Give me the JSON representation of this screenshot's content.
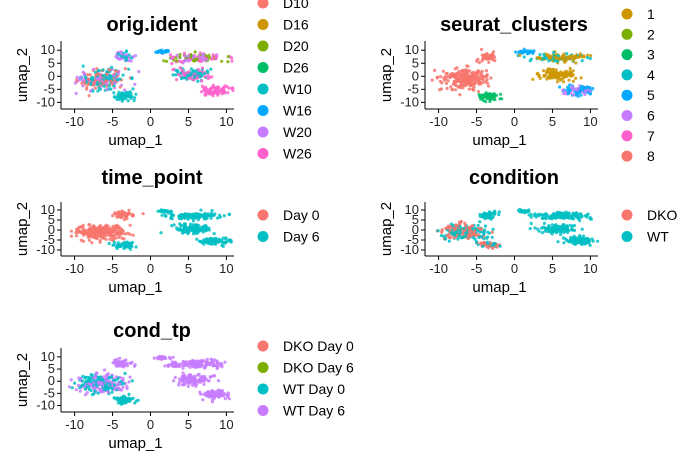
{
  "chart_data": [
    {
      "type": "scatter",
      "title": "orig.ident",
      "xlabel": "umap_1",
      "ylabel": "umap_2",
      "xticks": [
        "-10",
        "-5",
        "0",
        "5",
        "10"
      ],
      "yticks": [
        "10",
        "5",
        "0",
        "-5",
        "-10"
      ],
      "xlim": [
        -11,
        11
      ],
      "ylim": [
        -11,
        12
      ],
      "legend_position": "right",
      "legend": [
        {
          "label": "D10",
          "color": "#F8766D"
        },
        {
          "label": "D16",
          "color": "#CD9600"
        },
        {
          "label": "D20",
          "color": "#7CAE00"
        },
        {
          "label": "D26",
          "color": "#00BE67"
        },
        {
          "label": "W10",
          "color": "#00BFC4"
        },
        {
          "label": "W16",
          "color": "#00A9FF"
        },
        {
          "label": "W20",
          "color": "#C77CFF"
        },
        {
          "label": "W26",
          "color": "#FF61CC"
        }
      ]
    },
    {
      "type": "scatter",
      "title": "seurat_clusters",
      "xlabel": "umap_1",
      "ylabel": "umap_2",
      "xticks": [
        "-10",
        "-5",
        "0",
        "5",
        "10"
      ],
      "yticks": [
        "10",
        "5",
        "0",
        "-5",
        "-10"
      ],
      "xlim": [
        -11,
        11
      ],
      "ylim": [
        -11,
        12
      ],
      "legend_position": "right",
      "legend": [
        {
          "label": "1",
          "color": "#CD9600"
        },
        {
          "label": "2",
          "color": "#7CAE00"
        },
        {
          "label": "3",
          "color": "#00BE67"
        },
        {
          "label": "4",
          "color": "#00BFC4"
        },
        {
          "label": "5",
          "color": "#00A9FF"
        },
        {
          "label": "6",
          "color": "#C77CFF"
        },
        {
          "label": "7",
          "color": "#FF61CC"
        },
        {
          "label": "8",
          "color": "#F8766D"
        }
      ]
    },
    {
      "type": "scatter",
      "title": "time_point",
      "xlabel": "umap_1",
      "ylabel": "umap_2",
      "xticks": [
        "-10",
        "-5",
        "0",
        "5",
        "10"
      ],
      "yticks": [
        "10",
        "5",
        "0",
        "-5",
        "-10"
      ],
      "xlim": [
        -11,
        11
      ],
      "ylim": [
        -11,
        12
      ],
      "legend_position": "right",
      "legend": [
        {
          "label": "Day 0",
          "color": "#F8766D"
        },
        {
          "label": "Day 6",
          "color": "#00BFC4"
        }
      ]
    },
    {
      "type": "scatter",
      "title": "condition",
      "xlabel": "umap_1",
      "ylabel": "umap_2",
      "xticks": [
        "-10",
        "-5",
        "0",
        "5",
        "10"
      ],
      "yticks": [
        "10",
        "5",
        "0",
        "-5",
        "-10"
      ],
      "xlim": [
        -11,
        11
      ],
      "ylim": [
        -11,
        12
      ],
      "legend_position": "right",
      "legend": [
        {
          "label": "DKO",
          "color": "#F8766D"
        },
        {
          "label": "WT",
          "color": "#00BFC4"
        }
      ]
    },
    {
      "type": "scatter",
      "title": "cond_tp",
      "xlabel": "umap_1",
      "ylabel": "umap_2",
      "xticks": [
        "-10",
        "-5",
        "0",
        "5",
        "10"
      ],
      "yticks": [
        "10",
        "5",
        "0",
        "-5",
        "-10"
      ],
      "xlim": [
        -11,
        11
      ],
      "ylim": [
        -11,
        12
      ],
      "legend_position": "right",
      "legend": [
        {
          "label": "DKO Day 0",
          "color": "#F8766D"
        },
        {
          "label": "DKO Day 6",
          "color": "#7CAE00"
        },
        {
          "label": "WT Day 0",
          "color": "#00BFC4"
        },
        {
          "label": "WT Day 6",
          "color": "#C77CFF"
        }
      ]
    }
  ]
}
